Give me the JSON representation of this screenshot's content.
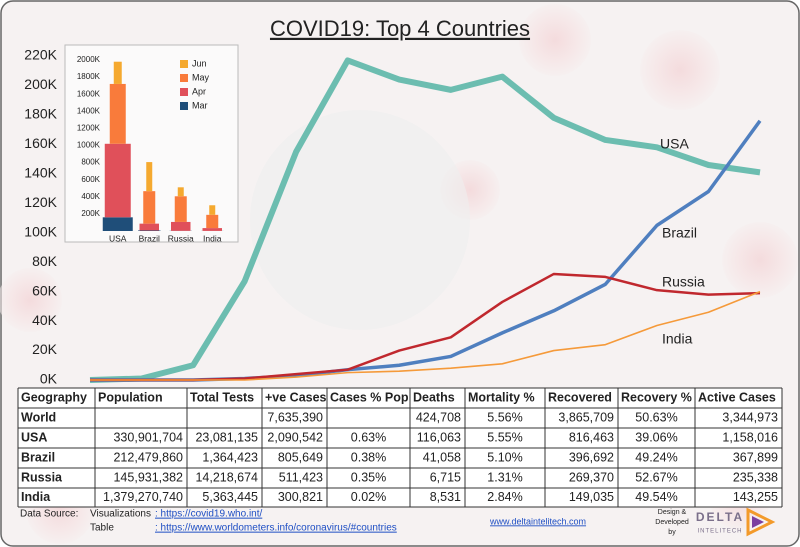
{
  "title": "COVID19: Top 4 Countries",
  "chart_data": [
    {
      "type": "line",
      "categories": [
        null,
        null,
        null,
        null,
        null,
        null,
        null,
        null,
        null,
        null,
        null,
        null,
        null,
        null
      ],
      "ylim": [
        0,
        220000
      ],
      "yticks": [
        {
          "value": 0,
          "label": "0K"
        },
        {
          "value": 20000,
          "label": "20K"
        },
        {
          "value": 40000,
          "label": "40K"
        },
        {
          "value": 60000,
          "label": "60K"
        },
        {
          "value": 80000,
          "label": "80K"
        },
        {
          "value": 100000,
          "label": "100K"
        },
        {
          "value": 120000,
          "label": "120K"
        },
        {
          "value": 140000,
          "label": "140K"
        },
        {
          "value": 160000,
          "label": "160K"
        },
        {
          "value": 180000,
          "label": "180K"
        },
        {
          "value": 200000,
          "label": "200K"
        },
        {
          "value": 220000,
          "label": "220K"
        }
      ],
      "grid": false,
      "series": [
        {
          "name": "USA",
          "color": "#6cbdb0",
          "values": [
            0,
            1000,
            10000,
            67000,
            155000,
            217000,
            204000,
            197000,
            206000,
            178000,
            163000,
            158000,
            146000,
            141000
          ]
        },
        {
          "name": "Brazil",
          "color": "#4f7fbf",
          "values": [
            0,
            0,
            0,
            1000,
            3000,
            7000,
            10000,
            16000,
            32000,
            47000,
            65000,
            105000,
            128000,
            176000
          ]
        },
        {
          "name": "Russia",
          "color": "#c0282e",
          "values": [
            0,
            0,
            0,
            1000,
            4000,
            7000,
            20000,
            29000,
            53000,
            72000,
            70000,
            61000,
            58000,
            59000
          ]
        },
        {
          "name": "India",
          "color": "#f59a3a",
          "values": [
            0,
            0,
            0,
            0,
            2000,
            5000,
            6000,
            8000,
            11000,
            20000,
            24000,
            37000,
            46000,
            60000
          ]
        }
      ]
    },
    {
      "type": "stacked_bar",
      "categories": [
        "USA",
        "Brazil",
        "Russia",
        "India"
      ],
      "ylim": [
        0,
        2000000
      ],
      "yticks": [
        {
          "value": 200000,
          "label": "200K"
        },
        {
          "value": 400000,
          "label": "400K"
        },
        {
          "value": 600000,
          "label": "600K"
        },
        {
          "value": 800000,
          "label": "800K"
        },
        {
          "value": 1000000,
          "label": "1000K"
        },
        {
          "value": 1200000,
          "label": "1200K"
        },
        {
          "value": 1400000,
          "label": "1400K"
        },
        {
          "value": 1600000,
          "label": "1600K"
        },
        {
          "value": 1800000,
          "label": "1800K"
        },
        {
          "value": 2000000,
          "label": "2000K"
        }
      ],
      "series": [
        {
          "name": "Mar",
          "color": "#1f4e79",
          "values": [
            160000,
            6000,
            2000,
            1000
          ]
        },
        {
          "name": "Apr",
          "color": "#e0505a",
          "values": [
            860000,
            80000,
            104000,
            33000
          ]
        },
        {
          "name": "May",
          "color": "#f97b3b",
          "values": [
            700000,
            380000,
            300000,
            155000
          ]
        },
        {
          "name": "Jun",
          "color": "#f5a92f",
          "values": [
            260000,
            340000,
            105000,
            112000
          ]
        }
      ]
    }
  ],
  "table": {
    "header": [
      "Geography",
      "Population",
      "Total Tests",
      "+ve Cases",
      "Cases % Pop",
      "Deaths",
      "Mortality %",
      "Recovered",
      "Recovery %",
      "Active Cases"
    ],
    "rows": [
      [
        "World",
        null,
        null,
        "7,635,390",
        null,
        "424,708",
        "5.56%",
        "3,865,709",
        "50.63%",
        "3,344,973"
      ],
      [
        "USA",
        "330,901,704",
        "23,081,135",
        "2,090,542",
        "0.63%",
        "116,063",
        "5.55%",
        "816,463",
        "39.06%",
        "1,158,016"
      ],
      [
        "Brazil",
        "212,479,860",
        "1,364,423",
        "805,649",
        "0.38%",
        "41,058",
        "5.10%",
        "396,692",
        "49.24%",
        "367,899"
      ],
      [
        "Russia",
        "145,931,382",
        "14,218,674",
        "511,423",
        "0.35%",
        "6,715",
        "1.31%",
        "269,370",
        "52.67%",
        "235,338"
      ],
      [
        "India",
        "1,379,270,740",
        "5,363,445",
        "300,821",
        "0.02%",
        "8,531",
        "2.84%",
        "149,035",
        "49.54%",
        "143,255"
      ]
    ]
  },
  "footer": {
    "source_label": "Data Source:",
    "visualizations_label": "Visualizations",
    "visualizations_link": ": https://covid19.who.int/",
    "table_label": "Table",
    "table_link": ": https://www.worldometers.info/coronavirus/#countries",
    "website": "www.deltaintelitech.com",
    "credit": [
      "Design &",
      "Developed",
      "by"
    ],
    "brand": "DELTA",
    "brand_sub": "INTELITECH"
  }
}
